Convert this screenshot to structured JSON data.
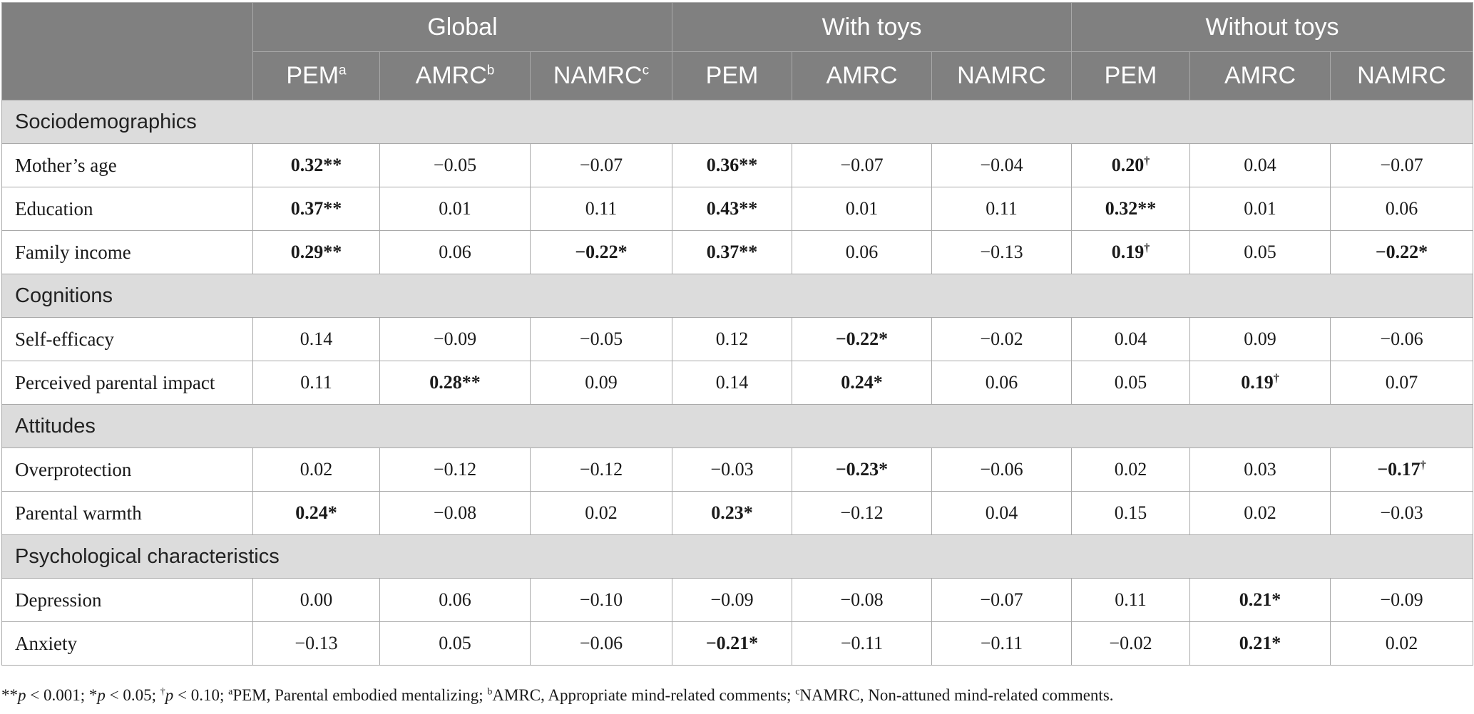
{
  "groups": [
    "Global",
    "With toys",
    "Without toys"
  ],
  "subheaders": [
    {
      "text": "PEM",
      "mark": "a"
    },
    {
      "text": "AMRC",
      "mark": "b"
    },
    {
      "text": "NAMRC",
      "mark": "c"
    },
    {
      "text": "PEM",
      "mark": ""
    },
    {
      "text": "AMRC",
      "mark": ""
    },
    {
      "text": "NAMRC",
      "mark": ""
    },
    {
      "text": "PEM",
      "mark": ""
    },
    {
      "text": "AMRC",
      "mark": ""
    },
    {
      "text": "NAMRC",
      "mark": ""
    }
  ],
  "sections": [
    {
      "title": "Sociodemographics",
      "rows": [
        {
          "label": "Mother’s age",
          "values": [
            "0.32**",
            "−0.05",
            "−0.07",
            "0.36**",
            "−0.07",
            "−0.04",
            "0.20†",
            "0.04",
            "−0.07"
          ],
          "bold": [
            true,
            false,
            false,
            true,
            false,
            false,
            true,
            false,
            false
          ]
        },
        {
          "label": "Education",
          "values": [
            "0.37**",
            "0.01",
            "0.11",
            "0.43**",
            "0.01",
            "0.11",
            "0.32**",
            "0.01",
            "0.06"
          ],
          "bold": [
            true,
            false,
            false,
            true,
            false,
            false,
            true,
            false,
            false
          ]
        },
        {
          "label": "Family income",
          "values": [
            "0.29**",
            "0.06",
            "−0.22*",
            "0.37**",
            "0.06",
            "−0.13",
            "0.19†",
            "0.05",
            "−0.22*"
          ],
          "bold": [
            true,
            false,
            true,
            true,
            false,
            false,
            true,
            false,
            true
          ]
        }
      ]
    },
    {
      "title": "Cognitions",
      "rows": [
        {
          "label": "Self-efficacy",
          "values": [
            "0.14",
            "−0.09",
            "−0.05",
            "0.12",
            "−0.22*",
            "−0.02",
            "0.04",
            "0.09",
            "−0.06"
          ],
          "bold": [
            false,
            false,
            false,
            false,
            true,
            false,
            false,
            false,
            false
          ]
        },
        {
          "label": "Perceived parental impact",
          "values": [
            "0.11",
            "0.28**",
            "0.09",
            "0.14",
            "0.24*",
            "0.06",
            "0.05",
            "0.19†",
            "0.07"
          ],
          "bold": [
            false,
            true,
            false,
            false,
            true,
            false,
            false,
            true,
            false
          ]
        }
      ]
    },
    {
      "title": "Attitudes",
      "rows": [
        {
          "label": "Overprotection",
          "values": [
            "0.02",
            "−0.12",
            "−0.12",
            "−0.03",
            "−0.23*",
            "−0.06",
            "0.02",
            "0.03",
            "−0.17†"
          ],
          "bold": [
            false,
            false,
            false,
            false,
            true,
            false,
            false,
            false,
            true
          ]
        },
        {
          "label": "Parental warmth",
          "values": [
            "0.24*",
            "−0.08",
            "0.02",
            "0.23*",
            "−0.12",
            "0.04",
            "0.15",
            "0.02",
            "−0.03"
          ],
          "bold": [
            true,
            false,
            false,
            true,
            false,
            false,
            false,
            false,
            false
          ]
        }
      ]
    },
    {
      "title": "Psychological characteristics",
      "rows": [
        {
          "label": "Depression",
          "values": [
            "0.00",
            "0.06",
            "−0.10",
            "−0.09",
            "−0.08",
            "−0.07",
            "0.11",
            "0.21*",
            "−0.09"
          ],
          "bold": [
            false,
            false,
            false,
            false,
            false,
            false,
            false,
            true,
            false
          ]
        },
        {
          "label": "Anxiety",
          "values": [
            "−0.13",
            "0.05",
            "−0.06",
            "−0.21*",
            "−0.11",
            "−0.11",
            "−0.02",
            "0.21*",
            "0.02"
          ],
          "bold": [
            false,
            false,
            false,
            true,
            false,
            false,
            false,
            true,
            false
          ]
        }
      ]
    }
  ],
  "footnote": "**p < 0.001; *p < 0.05; †p < 0.10; aPEM, Parental embodied mentalizing; bAMRC, Appropriate mind-related comments; cNAMRC, Non-attuned mind-related comments.",
  "footnote_parts": [
    {
      "t": "**",
      "s": false
    },
    {
      "t": "p",
      "i": true
    },
    {
      "t": " < 0.001; *",
      "s": false
    },
    {
      "t": "p",
      "i": true
    },
    {
      "t": " < 0.05; ",
      "s": false
    },
    {
      "t": "†",
      "s": true
    },
    {
      "t": "p",
      "i": true
    },
    {
      "t": " < 0.10; ",
      "s": false
    },
    {
      "t": "a",
      "s": true
    },
    {
      "t": "PEM, Parental embodied mentalizing; ",
      "s": false
    },
    {
      "t": "b",
      "s": true
    },
    {
      "t": "AMRC, Appropriate mind-related comments; ",
      "s": false
    },
    {
      "t": "c",
      "s": true
    },
    {
      "t": "NAMRC, Non-attuned mind-related comments.",
      "s": false
    }
  ]
}
